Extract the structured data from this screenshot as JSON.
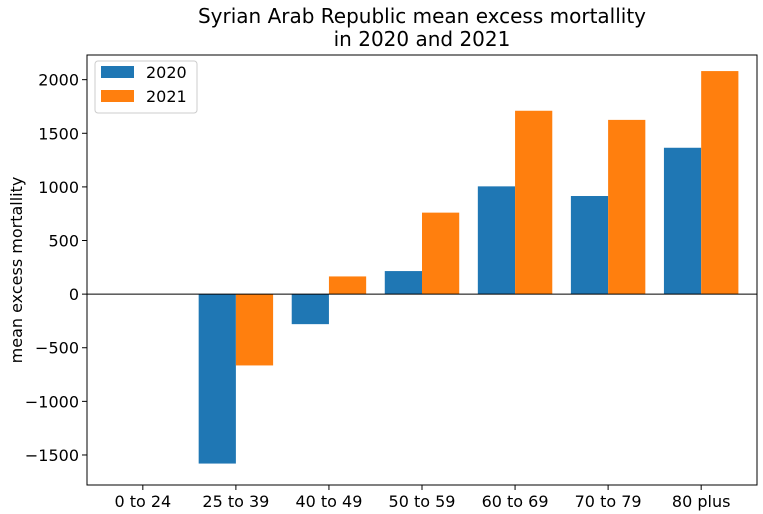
{
  "chart_data": {
    "type": "bar",
    "title_lines": [
      "Syrian Arab Republic mean excess mortallity",
      "in 2020 and 2021"
    ],
    "xlabel": "",
    "ylabel": "mean excess mortallity",
    "categories": [
      "0 to 24",
      "25 to 39",
      "40 to 49",
      "50 to 59",
      "60 to 69",
      "70 to 79",
      "80 plus"
    ],
    "series": [
      {
        "name": "2020",
        "color": "#1f77b4",
        "values": [
          0,
          -1580,
          -280,
          215,
          1005,
          915,
          1365
        ]
      },
      {
        "name": "2021",
        "color": "#ff7f0e",
        "values": [
          0,
          -665,
          165,
          760,
          1710,
          1625,
          2080
        ]
      }
    ],
    "ylim": [
      -1780,
      2230
    ],
    "yticks": [
      -1500,
      -1000,
      -500,
      0,
      500,
      1000,
      1500,
      2000
    ],
    "ytick_labels": [
      "−1500",
      "−1000",
      "−500",
      "0",
      "500",
      "1000",
      "1500",
      "2000"
    ],
    "zero_line": true,
    "grid": false,
    "legend_position": "top-left"
  }
}
